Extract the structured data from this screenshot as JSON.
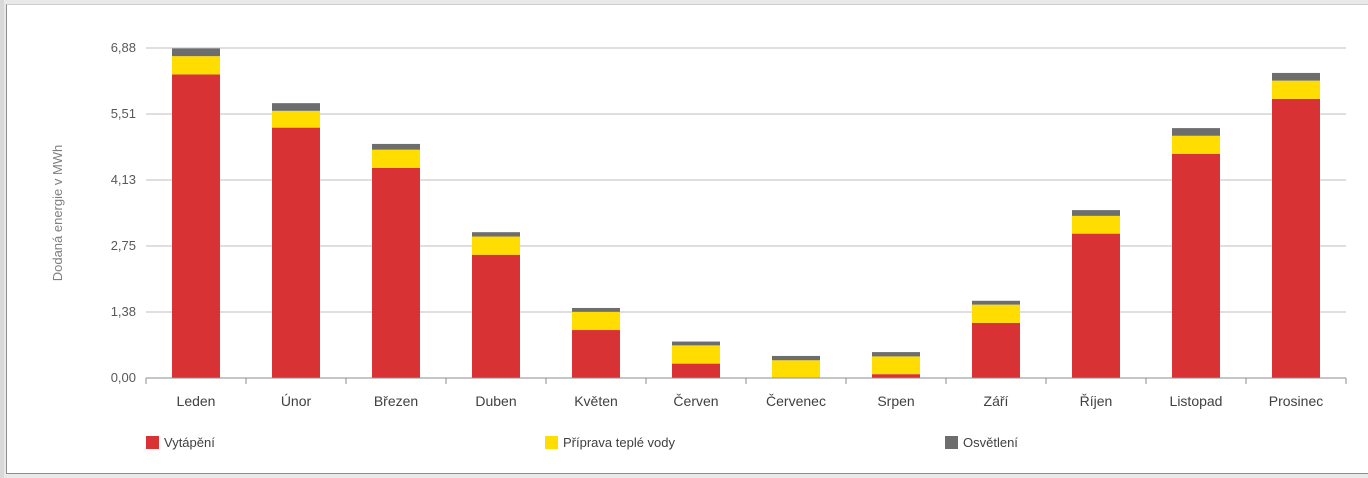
{
  "chart_data": {
    "type": "bar",
    "stacked": true,
    "categories": [
      "Leden",
      "Únor",
      "Březen",
      "Duben",
      "Květen",
      "Červen",
      "Červenec",
      "Srpen",
      "Září",
      "Říjen",
      "Listopad",
      "Prosinec"
    ],
    "series": [
      {
        "name": "Vytápění",
        "color": "#d93234",
        "values": [
          6.33,
          5.22,
          4.38,
          2.57,
          1.0,
          0.3,
          0.0,
          0.08,
          1.15,
          3.01,
          4.67,
          5.82
        ]
      },
      {
        "name": "Příprava teplé vody",
        "color": "#ffdd00",
        "values": [
          0.38,
          0.35,
          0.38,
          0.38,
          0.38,
          0.38,
          0.37,
          0.37,
          0.38,
          0.37,
          0.38,
          0.38
        ]
      },
      {
        "name": "Osvětlení",
        "color": "#6d6d6d",
        "values": [
          0.16,
          0.16,
          0.12,
          0.09,
          0.08,
          0.08,
          0.09,
          0.09,
          0.08,
          0.12,
          0.16,
          0.16
        ]
      }
    ],
    "yticks": [
      "0,00",
      "1,38",
      "2,75",
      "4,13",
      "5,51",
      "6,88"
    ],
    "ylim": [
      0,
      6.88
    ],
    "ylabel": "Dodaná energie v MWh",
    "xlabel": "",
    "grid": true,
    "legend": "bottom"
  }
}
